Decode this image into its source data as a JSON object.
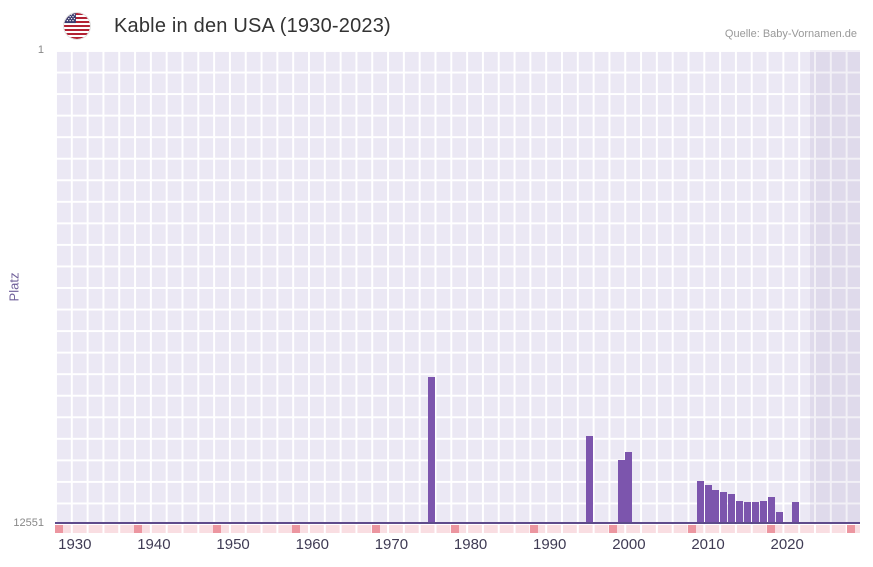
{
  "header": {
    "title": "Kable in den USA (1930-2023)",
    "source": "Quelle: Baby-Vornamen.de",
    "flag_icon": "us-flag-icon"
  },
  "chart_data": {
    "type": "bar",
    "title": "Kable in den USA (1930-2023)",
    "ylabel": "Platz",
    "y_axis": {
      "top_label": "1",
      "bottom_label": "12551",
      "min": 1,
      "max": 12551,
      "inverted": true
    },
    "x_domain": [
      1927.5,
      2029.2
    ],
    "x_ticks": [
      1930,
      1940,
      1950,
      1960,
      1970,
      1980,
      1990,
      2000,
      2010,
      2020
    ],
    "bars": [
      {
        "year": 1975,
        "rank": 8700
      },
      {
        "year": 1995,
        "rank": 10250
      },
      {
        "year": 1999,
        "rank": 10900
      },
      {
        "year": 2000,
        "rank": 10700
      },
      {
        "year": 2009,
        "rank": 11460
      },
      {
        "year": 2010,
        "rank": 11560
      },
      {
        "year": 2011,
        "rank": 11690
      },
      {
        "year": 2012,
        "rank": 11760
      },
      {
        "year": 2013,
        "rank": 11800
      },
      {
        "year": 2014,
        "rank": 11980
      },
      {
        "year": 2015,
        "rank": 12030
      },
      {
        "year": 2016,
        "rank": 12030
      },
      {
        "year": 2017,
        "rank": 11980
      },
      {
        "year": 2018,
        "rank": 11890
      },
      {
        "year": 2019,
        "rank": 12280
      },
      {
        "year": 2021,
        "rank": 12020
      }
    ],
    "strip_marks": [
      1928,
      1938,
      1948,
      1958,
      1968,
      1978,
      1988,
      1998,
      2008,
      2018,
      2028
    ],
    "bar_color": "#7c55ad",
    "plot_bg": "#ebe8f4",
    "grid_color": "#ffffff",
    "strip_bg": "#f9dee2",
    "strip_mark_color": "#ec96a0",
    "legend": "off",
    "grid": "on"
  }
}
